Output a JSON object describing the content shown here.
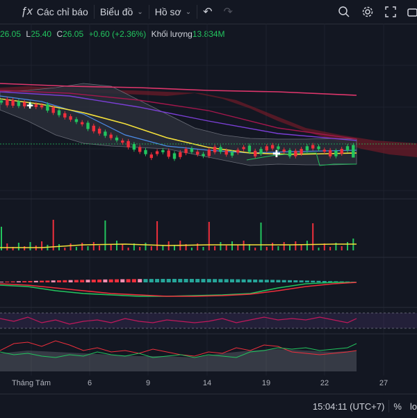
{
  "toolbar": {
    "indicators_label": "Các chỉ báo",
    "chart_label": "Biểu đồ",
    "profile_label": "Hồ sơ"
  },
  "ohlc": {
    "o_value": "26.05",
    "l_label": "L",
    "l_value": "25.40",
    "c_label": "C",
    "c_value": "26.05",
    "change": "+0.60 (+2.36%)",
    "volume_label": "Khối lượng",
    "volume_value": "13.834M"
  },
  "time_axis": {
    "labels": [
      "Tháng Tám",
      "6",
      "9",
      "14",
      "19",
      "22",
      "27"
    ]
  },
  "footer": {
    "time": "15:04:11 (UTC+7)",
    "percent": "%",
    "log": "lo"
  },
  "colors": {
    "background": "#131722",
    "up": "#22c55e",
    "down": "#ef2f3c",
    "ma_yellow": "#f5e13b",
    "ma_blue": "#4c8ce8",
    "ma_purple": "#7b3fd6",
    "ma_pink": "#e0366c",
    "cloud": "#8b1c2a"
  }
}
